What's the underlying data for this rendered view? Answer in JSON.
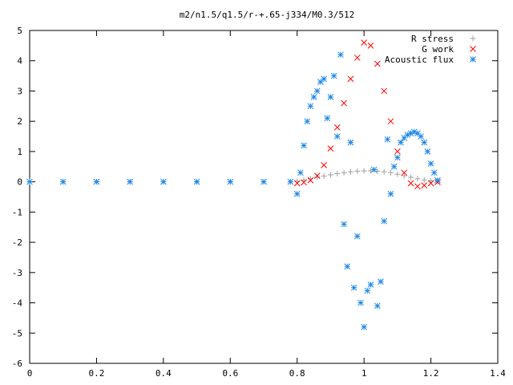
{
  "chart_data": {
    "type": "scatter",
    "title": "m2/n1.5/q1.5/r-+.65-j334/M0.3/512",
    "xlabel": "",
    "ylabel": "",
    "xlim": [
      0,
      1.4
    ],
    "ylim": [
      -6,
      5
    ],
    "xticks": [
      "0",
      "0.2",
      "0.4",
      "0.6",
      "0.8",
      "1",
      "1.2",
      "1.4"
    ],
    "yticks": [
      "-6",
      "-5",
      "-4",
      "-3",
      "-2",
      "-1",
      "0",
      "1",
      "2",
      "3",
      "4",
      "5"
    ],
    "grid": false,
    "legend_position": "top-right",
    "series": [
      {
        "name": "R stress",
        "marker": "+",
        "color": "#a0a0a0",
        "x": [
          0.0,
          0.1,
          0.2,
          0.3,
          0.4,
          0.5,
          0.6,
          0.7,
          0.78,
          0.8,
          0.82,
          0.84,
          0.86,
          0.88,
          0.9,
          0.92,
          0.94,
          0.96,
          0.98,
          1.0,
          1.02,
          1.04,
          1.06,
          1.08,
          1.1,
          1.12,
          1.14,
          1.16,
          1.18,
          1.2,
          1.22
        ],
        "y": [
          0,
          0,
          0,
          0,
          0,
          0,
          0,
          0,
          0,
          0.02,
          0.06,
          0.1,
          0.15,
          0.19,
          0.23,
          0.27,
          0.3,
          0.33,
          0.35,
          0.36,
          0.36,
          0.35,
          0.33,
          0.3,
          0.25,
          0.2,
          0.15,
          0.1,
          0.06,
          0.03,
          0.01
        ]
      },
      {
        "name": "G work",
        "marker": "x",
        "color": "#ff0000",
        "x": [
          0.8,
          0.82,
          0.84,
          0.86,
          0.88,
          0.9,
          0.92,
          0.94,
          0.96,
          0.98,
          1.0,
          1.02,
          1.04,
          1.06,
          1.08,
          1.1,
          1.12,
          1.14,
          1.16,
          1.18,
          1.2,
          1.22
        ],
        "y": [
          -0.05,
          -0.02,
          0.05,
          0.2,
          0.55,
          1.1,
          1.8,
          2.6,
          3.4,
          4.1,
          4.6,
          4.5,
          3.9,
          3.0,
          2.0,
          1.0,
          0.3,
          -0.05,
          -0.15,
          -0.12,
          -0.05,
          -0.01
        ]
      },
      {
        "name": "Acoustic flux",
        "marker": "*",
        "color": "#1e88e5",
        "x": [
          0.0,
          0.1,
          0.2,
          0.3,
          0.4,
          0.5,
          0.6,
          0.7,
          0.78,
          0.8,
          0.81,
          0.82,
          0.83,
          0.84,
          0.85,
          0.86,
          0.87,
          0.88,
          0.89,
          0.9,
          0.91,
          0.92,
          0.93,
          0.94,
          0.95,
          0.96,
          0.97,
          0.98,
          0.99,
          1.0,
          1.01,
          1.02,
          1.03,
          1.04,
          1.05,
          1.06,
          1.07,
          1.08,
          1.09,
          1.1,
          1.11,
          1.12,
          1.13,
          1.14,
          1.15,
          1.16,
          1.17,
          1.18,
          1.19,
          1.2,
          1.21,
          1.22
        ],
        "y": [
          0,
          0,
          0,
          0,
          0,
          0,
          0,
          0,
          0,
          -0.4,
          0.3,
          1.2,
          2.0,
          2.5,
          2.8,
          3.0,
          3.3,
          3.4,
          2.1,
          2.8,
          3.5,
          1.5,
          4.2,
          -1.4,
          -2.8,
          1.3,
          -3.5,
          -1.8,
          -4.0,
          -4.8,
          -3.6,
          -3.4,
          0.4,
          -4.1,
          -3.3,
          -1.3,
          1.4,
          -0.4,
          0.5,
          0.8,
          1.3,
          1.45,
          1.55,
          1.6,
          1.65,
          1.6,
          1.5,
          1.3,
          1.0,
          0.6,
          0.3,
          0.05
        ]
      }
    ]
  }
}
